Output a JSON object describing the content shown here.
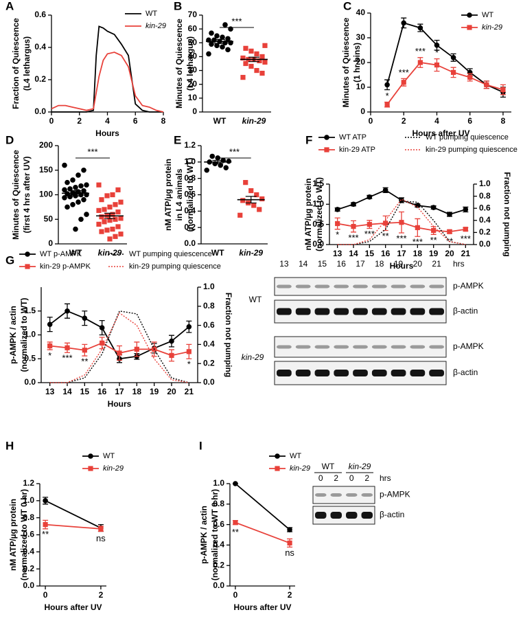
{
  "chart_data": [
    {
      "type": "line",
      "panel": "A",
      "ylabel": [
        "Fraction of Quiescence",
        "(L4 lethargus)"
      ],
      "xlabel": "Hours",
      "x": [
        0,
        0.5,
        1,
        1.5,
        2,
        2.5,
        3,
        3.2,
        3.4,
        3.7,
        4,
        4.5,
        5,
        5.5,
        6,
        6.5,
        7,
        7.5,
        8
      ],
      "xlim": [
        0,
        8
      ],
      "xticks": [
        0,
        2,
        4,
        6,
        8
      ],
      "ylim": [
        0,
        0.6
      ],
      "yticks": [
        {
          "value": 0,
          "label": "0.0"
        },
        0.2,
        0.4,
        0.6
      ],
      "series": [
        {
          "name": "WT",
          "color": "#000000",
          "marker": "none",
          "values": [
            0,
            0,
            0,
            0,
            0,
            0,
            0.01,
            0.35,
            0.53,
            0.52,
            0.5,
            0.48,
            0.42,
            0.35,
            0.05,
            0.01,
            0,
            0,
            0
          ]
        },
        {
          "name": "kin-29",
          "color": "#e8413a",
          "marker": "none",
          "values": [
            0.02,
            0.04,
            0.04,
            0.03,
            0.02,
            0.01,
            0.02,
            0.12,
            0.22,
            0.32,
            0.36,
            0.37,
            0.35,
            0.28,
            0.1,
            0.04,
            0.03,
            0.01,
            0
          ]
        }
      ]
    },
    {
      "type": "strip",
      "panel": "B",
      "ylabel": [
        "Minutes of Quiescence",
        "(L4 lethargus)"
      ],
      "ylim": [
        0,
        70
      ],
      "yticks": [
        0,
        10,
        20,
        30,
        40,
        50,
        60,
        70
      ],
      "significance": "***",
      "groups": [
        {
          "name": "WT",
          "color": "#000000",
          "marker": "circle",
          "values": [
            42,
            45,
            47,
            48,
            49,
            50,
            50,
            51,
            52,
            52,
            53,
            54,
            55,
            57,
            60,
            63
          ],
          "mean": 51,
          "sem": 1.4
        },
        {
          "name": "kin-29",
          "color": "#e8413a",
          "marker": "square",
          "values": [
            25,
            28,
            30,
            33,
            35,
            36,
            37,
            38,
            38,
            39,
            40,
            42,
            44,
            46,
            48
          ],
          "mean": 38,
          "sem": 1.6
        }
      ]
    },
    {
      "type": "line",
      "panel": "C",
      "ylabel": [
        "Minutes of Quiescence",
        "(1 hr bins)"
      ],
      "xlabel": "Hours after UV",
      "x": [
        1,
        2,
        3,
        4,
        5,
        6,
        7,
        8
      ],
      "xlim": [
        0,
        8.5
      ],
      "xticks": [
        0,
        2,
        4,
        6,
        8
      ],
      "ylim": [
        0,
        40
      ],
      "yticks": [
        0,
        10,
        20,
        30,
        40
      ],
      "series": [
        {
          "name": "WT",
          "color": "#000000",
          "marker": "circle",
          "values": [
            11,
            36,
            34,
            27,
            22,
            16,
            11,
            8
          ],
          "errors": [
            2,
            2,
            1.5,
            2,
            1.5,
            1.5,
            1.5,
            2
          ]
        },
        {
          "name": "kin-29",
          "color": "#e8413a",
          "marker": "square",
          "values": [
            3,
            12,
            20,
            19,
            16,
            14,
            11,
            9
          ],
          "errors": [
            1,
            1.5,
            2,
            2.5,
            2,
            1.5,
            1.5,
            2
          ],
          "significance": [
            "*",
            "***",
            "***",
            "*",
            null,
            null,
            null,
            null
          ],
          "significance_position": "above"
        }
      ]
    },
    {
      "type": "strip",
      "panel": "D",
      "ylabel": [
        "Minutes of Quiescence",
        "(first 4 hrs after UV)"
      ],
      "ylim": [
        0,
        200
      ],
      "yticks": [
        0,
        50,
        100,
        150,
        200
      ],
      "significance": "***",
      "groups": [
        {
          "name": "WT",
          "color": "#000000",
          "marker": "circle",
          "values": [
            160,
            150,
            140,
            130,
            125,
            120,
            118,
            115,
            112,
            110,
            108,
            106,
            104,
            102,
            100,
            100,
            98,
            96,
            94,
            90,
            85,
            80,
            75,
            60,
            50,
            30
          ],
          "mean": 103,
          "sem": 5.5
        },
        {
          "name": "kin-29",
          "color": "#e8413a",
          "marker": "square",
          "values": [
            120,
            110,
            100,
            98,
            90,
            85,
            80,
            75,
            70,
            68,
            65,
            60,
            58,
            55,
            52,
            50,
            48,
            45,
            40,
            35,
            30,
            28,
            25,
            20,
            15,
            10
          ],
          "mean": 57,
          "sem": 5.5
        }
      ]
    },
    {
      "type": "strip",
      "panel": "E",
      "ylabel": [
        "nM ATP/µg protein",
        "in L4 animals",
        "(normalized to WT)"
      ],
      "ylim": [
        0,
        1.2
      ],
      "yticks": [
        {
          "value": 0,
          "label": "0.0"
        },
        0.2,
        0.4,
        0.6,
        0.8,
        {
          "value": 1,
          "label": "1.0"
        },
        1.2
      ],
      "significance": "***",
      "groups": [
        {
          "name": "WT",
          "color": "#000000",
          "marker": "circle",
          "values": [
            0.9,
            0.93,
            0.96,
            0.98,
            1.0,
            1.01,
            1.02,
            1.05,
            1.07
          ],
          "mean": 1.0,
          "sem": 0.02
        },
        {
          "name": "kin-29",
          "color": "#e8413a",
          "marker": "square",
          "values": [
            0.35,
            0.42,
            0.47,
            0.5,
            0.53,
            0.55,
            0.6,
            0.65,
            0.75
          ],
          "mean": 0.54,
          "sem": 0.04
        }
      ]
    },
    {
      "type": "line",
      "panel": "F",
      "ylabel": [
        "nM ATP/µg protein",
        "(normalized to WT)"
      ],
      "y2label": "Fraction not pumping",
      "xlabel": "Hours",
      "x": [
        13,
        14,
        15,
        16,
        17,
        18,
        19,
        20,
        21
      ],
      "xlim": [
        12.5,
        21.5
      ],
      "xticks": [
        13,
        14,
        15,
        16,
        17,
        18,
        19,
        20,
        21
      ],
      "ylim": [
        0,
        1.5
      ],
      "yticks": [
        {
          "value": 0,
          "label": "0.0"
        },
        0.5,
        {
          "value": 1,
          "label": "1.0"
        },
        1.5
      ],
      "y2lim": [
        0,
        1
      ],
      "y2ticks": [
        {
          "value": 0,
          "label": "0.0"
        },
        0.2,
        0.4,
        0.6,
        0.8,
        {
          "value": 1,
          "label": "1.0"
        }
      ],
      "series": [
        {
          "name": "WT ATP",
          "color": "#000000",
          "marker": "circle",
          "values": [
            0.87,
            1.0,
            1.18,
            1.35,
            1.1,
            0.97,
            0.92,
            0.75,
            0.87
          ],
          "errors": [
            0.04,
            0.04,
            0.04,
            0.06,
            0.06,
            0.04,
            0.04,
            0.05,
            0.06
          ]
        },
        {
          "name": "kin-29 ATP",
          "color": "#e8413a",
          "marker": "square",
          "values": [
            0.52,
            0.45,
            0.5,
            0.53,
            0.55,
            0.42,
            0.35,
            0.32,
            0.38
          ],
          "errors": [
            0.14,
            0.14,
            0.1,
            0.18,
            0.26,
            0.22,
            0.1,
            0.04,
            0.04
          ],
          "significance": [
            "*",
            "***",
            "***",
            "**",
            "***",
            "***",
            "**",
            "**",
            "***"
          ],
          "significance_position": "below"
        },
        {
          "name": "WT pumping quiescence",
          "color": "#000000",
          "marker": "none",
          "dash": true,
          "axis": "y2",
          "values": [
            0,
            0,
            0.05,
            0.25,
            0.72,
            0.7,
            0.4,
            0.05,
            0
          ]
        },
        {
          "name": "kin-29 pumping quiescence",
          "color": "#e8413a",
          "marker": "none",
          "dash": true,
          "axis": "y2",
          "values": [
            0,
            0,
            0.08,
            0.4,
            0.75,
            0.62,
            0.3,
            0.05,
            0
          ]
        }
      ]
    },
    {
      "type": "line",
      "panel": "G",
      "ylabel": [
        "p-AMPK / actin",
        "(normalized to WT)"
      ],
      "y2label": "Fraction not pumping",
      "xlabel": "Hours",
      "x": [
        13,
        14,
        15,
        16,
        17,
        18,
        19,
        20,
        21
      ],
      "xlim": [
        12.5,
        21.5
      ],
      "xticks": [
        13,
        14,
        15,
        16,
        17,
        18,
        19,
        20,
        21
      ],
      "ylim": [
        0,
        2
      ],
      "yticks": [
        {
          "value": 0,
          "label": "0.0"
        },
        0.5,
        {
          "value": 1,
          "label": "1.0"
        },
        1.5
      ],
      "y2lim": [
        0,
        1
      ],
      "y2ticks": [
        {
          "value": 0,
          "label": "0.0"
        },
        0.2,
        0.4,
        0.6,
        0.8,
        {
          "value": 1,
          "label": "1.0"
        }
      ],
      "series": [
        {
          "name": "WT p-AMPK",
          "color": "#000000",
          "marker": "circle",
          "values": [
            1.22,
            1.5,
            1.35,
            1.15,
            0.5,
            0.55,
            0.72,
            0.87,
            1.17
          ],
          "errors": [
            0.15,
            0.15,
            0.15,
            0.15,
            0.08,
            0.06,
            0.1,
            0.12,
            0.12
          ]
        },
        {
          "name": "kin-29 p-AMPK",
          "color": "#e8413a",
          "marker": "square",
          "values": [
            0.77,
            0.73,
            0.68,
            0.83,
            0.62,
            0.7,
            0.7,
            0.57,
            0.65
          ],
          "errors": [
            0.08,
            0.1,
            0.12,
            0.12,
            0.15,
            0.15,
            0.15,
            0.12,
            0.15
          ],
          "significance": [
            "*",
            "***",
            "**",
            null,
            null,
            null,
            null,
            null,
            "*"
          ],
          "significance_position": "below"
        },
        {
          "name": "WT pumping quiescence",
          "color": "#000000",
          "marker": "none",
          "dash": true,
          "axis": "y2",
          "values": [
            0,
            0,
            0.05,
            0.3,
            0.75,
            0.72,
            0.35,
            0.05,
            0
          ]
        },
        {
          "name": "kin-29 pumping quiescence",
          "color": "#e8413a",
          "marker": "none",
          "dash": true,
          "axis": "y2",
          "values": [
            0,
            0,
            0.08,
            0.35,
            0.73,
            0.6,
            0.25,
            0.03,
            0
          ]
        }
      ]
    },
    {
      "type": "line",
      "panel": "H",
      "ylabel": [
        "nM ATP/µg protein",
        "(normalized to WT 0 hr)"
      ],
      "xlabel": "Hours after UV",
      "x": [
        0,
        2
      ],
      "xlim": [
        -0.2,
        2.2
      ],
      "xticks": [
        0,
        2
      ],
      "ylim": [
        0,
        1.2
      ],
      "yticks": [
        {
          "value": 0,
          "label": "0.0"
        },
        0.2,
        0.4,
        0.6,
        0.8,
        {
          "value": 1,
          "label": "1.0"
        },
        1.2
      ],
      "series": [
        {
          "name": "WT",
          "color": "#000000",
          "marker": "circle",
          "values": [
            1.0,
            0.68
          ],
          "errors": [
            0.04,
            0.04
          ]
        },
        {
          "name": "kin-29",
          "color": "#e8413a",
          "marker": "square",
          "values": [
            0.72,
            0.67
          ],
          "errors": [
            0.05,
            0.03
          ],
          "significance": [
            "**",
            "ns"
          ],
          "significance_position": "below"
        }
      ]
    },
    {
      "type": "line",
      "panel": "I",
      "ylabel": [
        "p-AMPK / actin",
        "(normalized to WT 0 hr)"
      ],
      "xlabel": "Hours after UV",
      "x": [
        0,
        2
      ],
      "xlim": [
        -0.2,
        2.2
      ],
      "xticks": [
        0,
        2
      ],
      "ylim": [
        0,
        1
      ],
      "yticks": [
        {
          "value": 0,
          "label": "0.0"
        },
        0.2,
        0.4,
        0.6,
        0.8,
        {
          "value": 1,
          "label": "1.0"
        }
      ],
      "series": [
        {
          "name": "WT",
          "color": "#000000",
          "marker": "circle",
          "values": [
            1.0,
            0.55
          ],
          "errors": [
            0,
            0.02
          ]
        },
        {
          "name": "kin-29",
          "color": "#e8413a",
          "marker": "square",
          "values": [
            0.62,
            0.42
          ],
          "errors": [
            0.02,
            0.04
          ],
          "significance": [
            "**",
            "ns"
          ],
          "significance_position": "below"
        }
      ]
    }
  ],
  "blot_g": {
    "lanes": [
      "13",
      "14",
      "15",
      "16",
      "17",
      "18",
      "19",
      "20",
      "21"
    ],
    "unit": "hrs",
    "groups": [
      "WT",
      "kin-29"
    ],
    "row_labels": [
      "p-AMPK",
      "β-actin",
      "p-AMPK",
      "β-actin"
    ]
  },
  "blot_i": {
    "groups": [
      "WT",
      "kin-29"
    ],
    "lanes": [
      "0",
      "2",
      "0",
      "2"
    ],
    "unit": "hrs",
    "row_labels": [
      "p-AMPK",
      "β-actin"
    ]
  }
}
